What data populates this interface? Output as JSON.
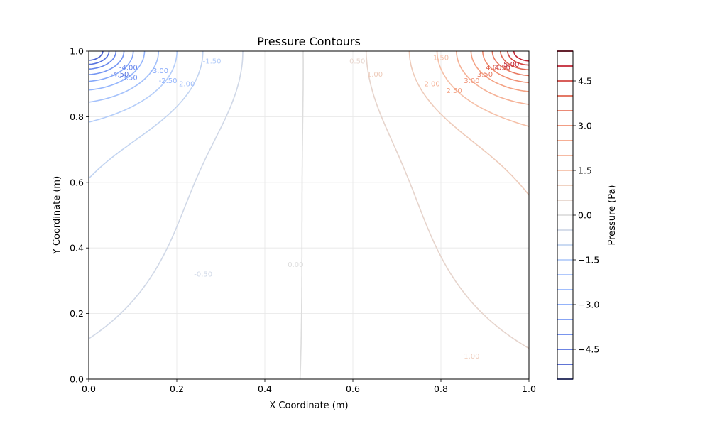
{
  "chart_data": {
    "type": "contour",
    "title": "Pressure Contours",
    "xlabel": "X Coordinate (m)",
    "ylabel": "Y Coordinate (m)",
    "xlim": [
      0,
      1
    ],
    "ylim": [
      0,
      1
    ],
    "x_ticks": [
      "0.0",
      "0.2",
      "0.4",
      "0.6",
      "0.8",
      "1.0"
    ],
    "y_ticks": [
      "0.0",
      "0.2",
      "0.4",
      "0.6",
      "0.8",
      "1.0"
    ],
    "grid": true,
    "colormap": "coolwarm",
    "colorbar": {
      "label": "Pressure (Pa)",
      "range": [
        -5.5,
        5.5
      ],
      "level_step": 0.5,
      "tick_values": [
        -4.5,
        -3.0,
        -1.5,
        0.0,
        1.5,
        3.0,
        4.5
      ],
      "tick_labels": [
        "−4.5",
        "−3.0",
        "−1.5",
        "0.0",
        "1.5",
        "3.0",
        "4.5"
      ]
    },
    "contour_levels": [
      -5.0,
      -4.5,
      -4.0,
      -3.5,
      -3.0,
      -2.5,
      -2.0,
      -1.5,
      -1.0,
      -0.5,
      0.0,
      0.5,
      1.0,
      1.5,
      2.0,
      2.5,
      3.0,
      3.5,
      4.0,
      4.5,
      5.0
    ],
    "contour_labels": [
      {
        "level": -0.5,
        "text": "-0.50",
        "x": 0.26,
        "y": 0.32
      },
      {
        "level": 0.0,
        "text": "0.00",
        "x": 0.47,
        "y": 0.35
      },
      {
        "level": 1.0,
        "text": "1.00",
        "x": 0.87,
        "y": 0.07
      },
      {
        "level": 0.5,
        "text": "0.50",
        "x": 0.61,
        "y": 0.97
      },
      {
        "level": 1.0,
        "text": "1.00",
        "x": 0.65,
        "y": 0.93
      },
      {
        "level": 1.5,
        "text": "1.50",
        "x": 0.8,
        "y": 0.98
      },
      {
        "level": 2.0,
        "text": "2.00",
        "x": 0.78,
        "y": 0.9
      },
      {
        "level": 2.5,
        "text": "2.50",
        "x": 0.83,
        "y": 0.88
      },
      {
        "level": 3.0,
        "text": "3.00",
        "x": 0.87,
        "y": 0.91
      },
      {
        "level": 3.5,
        "text": "3.50",
        "x": 0.9,
        "y": 0.93
      },
      {
        "level": 4.0,
        "text": "4.00",
        "x": 0.92,
        "y": 0.95
      },
      {
        "level": 4.5,
        "text": "4.50",
        "x": 0.94,
        "y": 0.95
      },
      {
        "level": 5.0,
        "text": "5.00",
        "x": 0.96,
        "y": 0.96
      },
      {
        "level": -1.5,
        "text": "-1.50",
        "x": 0.28,
        "y": 0.97
      },
      {
        "level": -2.0,
        "text": "-2.00",
        "x": 0.22,
        "y": 0.9
      },
      {
        "level": -2.5,
        "text": "-2.50",
        "x": 0.18,
        "y": 0.91
      },
      {
        "level": -3.0,
        "text": "-3.00",
        "x": 0.16,
        "y": 0.94
      },
      {
        "level": -3.5,
        "text": "-3.50",
        "x": 0.09,
        "y": 0.92
      },
      {
        "level": -4.0,
        "text": "-4.00",
        "x": 0.09,
        "y": 0.95
      },
      {
        "level": -4.5,
        "text": "-4.50",
        "x": 0.07,
        "y": 0.93
      }
    ]
  }
}
